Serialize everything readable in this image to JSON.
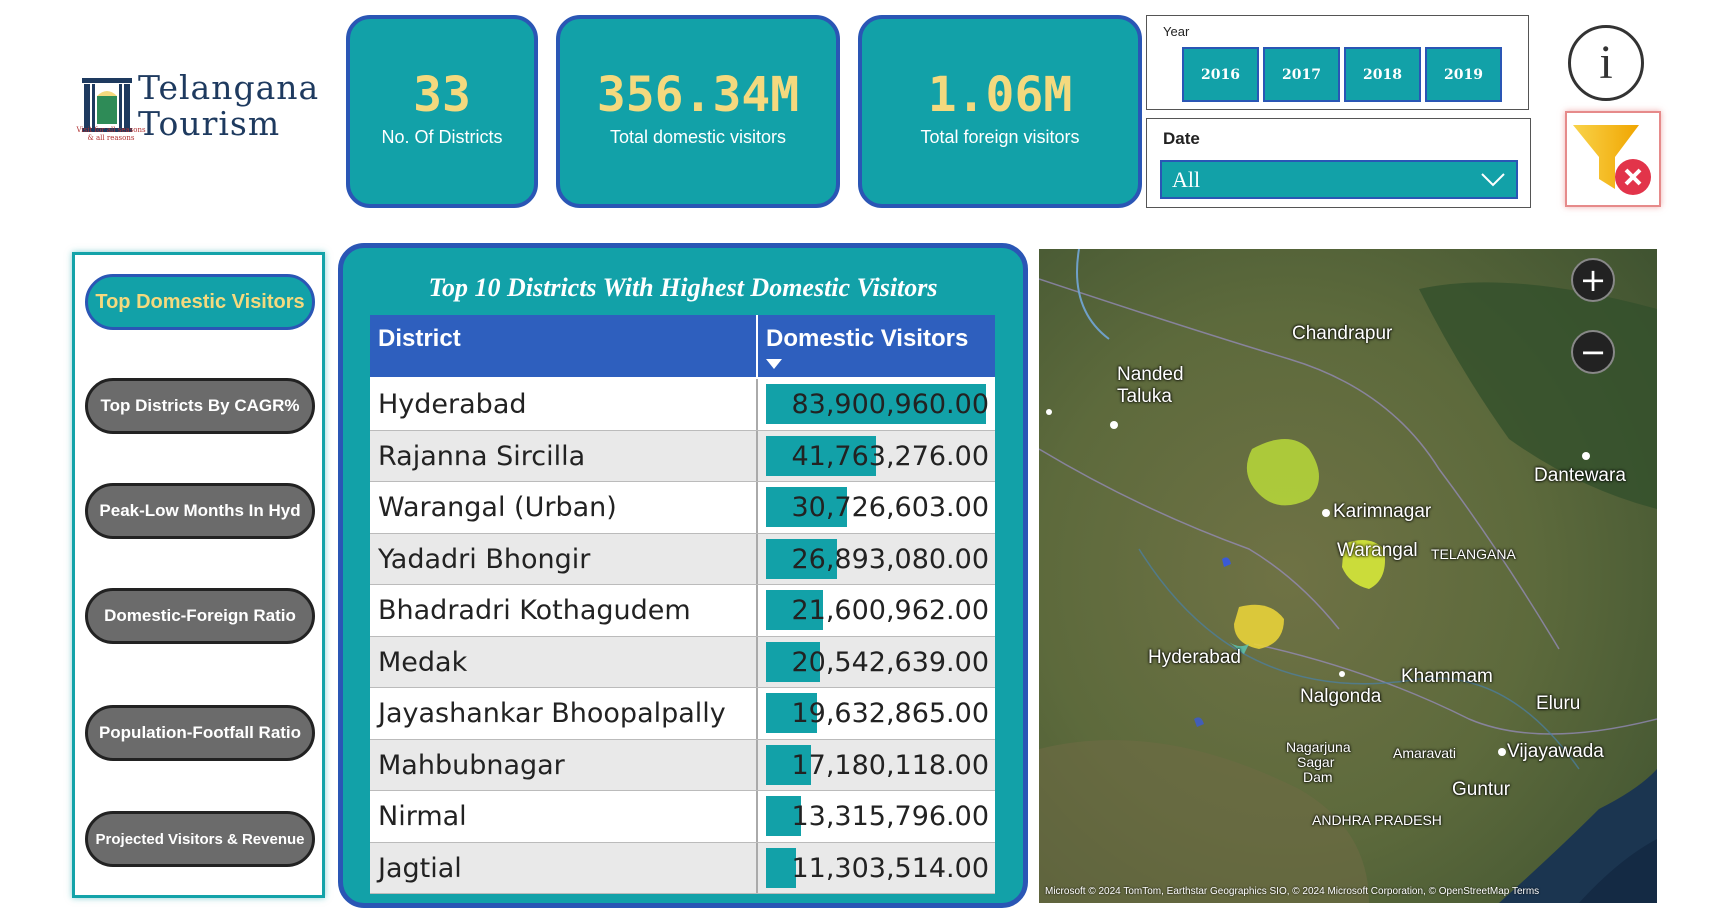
{
  "logo": {
    "brand_line1": "Telangana",
    "brand_line2": "Tourism",
    "tagline": "Visit for all seasons & all reasons"
  },
  "kpis": [
    {
      "value": "33",
      "label": "No. Of Districts"
    },
    {
      "value": "356.34M",
      "label": "Total domestic visitors"
    },
    {
      "value": "1.06M",
      "label": "Total foreign visitors"
    }
  ],
  "year_slicer": {
    "title": "Year",
    "options": [
      "2016",
      "2017",
      "2018",
      "2019"
    ]
  },
  "date_slicer": {
    "title": "Date",
    "selected": "All"
  },
  "info_icon_glyph": "i",
  "nav": [
    {
      "label": "Top Domestic Visitors",
      "active": true
    },
    {
      "label": "Top Districts By CAGR%",
      "active": false
    },
    {
      "label": "Peak-Low Months In Hyd",
      "active": false
    },
    {
      "label": "Domestic-Foreign Ratio",
      "active": false
    },
    {
      "label": "Population-Footfall Ratio",
      "active": false
    },
    {
      "label": "Projected Visitors & Revenue",
      "active": false
    }
  ],
  "table": {
    "title": "Top 10 Districts With Highest Domestic Visitors",
    "columns": [
      "District",
      "Domestic Visitors"
    ],
    "rows": [
      {
        "district": "Hyderabad",
        "visitors": "83,900,960.00",
        "value": 83900960
      },
      {
        "district": "Rajanna Sircilla",
        "visitors": "41,763,276.00",
        "value": 41763276
      },
      {
        "district": "Warangal (Urban)",
        "visitors": "30,726,603.00",
        "value": 30726603
      },
      {
        "district": "Yadadri Bhongir",
        "visitors": "26,893,080.00",
        "value": 26893080
      },
      {
        "district": "Bhadradri Kothagudem",
        "visitors": "21,600,962.00",
        "value": 21600962
      },
      {
        "district": "Medak",
        "visitors": "20,542,639.00",
        "value": 20542639
      },
      {
        "district": "Jayashankar Bhoopalpally",
        "visitors": "19,632,865.00",
        "value": 19632865
      },
      {
        "district": "Mahbubnagar",
        "visitors": "17,180,118.00",
        "value": 17180118
      },
      {
        "district": "Nirmal",
        "visitors": "13,315,796.00",
        "value": 13315796
      },
      {
        "district": "Jagtial",
        "visitors": "11,303,514.00",
        "value": 11303514
      }
    ]
  },
  "map": {
    "labels": [
      "Chandrapur",
      "Nanded",
      "Taluka",
      "Dantewara",
      "Karimnagar",
      "Warangal",
      "TELANGANA",
      "Hyderabad",
      "Khammam",
      "Nalgonda",
      "Eluru",
      "Nagarjuna",
      "Sagar",
      "Dam",
      "Amaravati",
      "Vijayawada",
      "Guntur",
      "ANDHRA PRADESH"
    ],
    "zoom_in": "+",
    "zoom_out": "−",
    "attribution": "Microsoft © 2024 TomTom, Earthstar Geographics SIO, © 2024 Microsoft Corporation, © OpenStreetMap   Terms"
  }
}
